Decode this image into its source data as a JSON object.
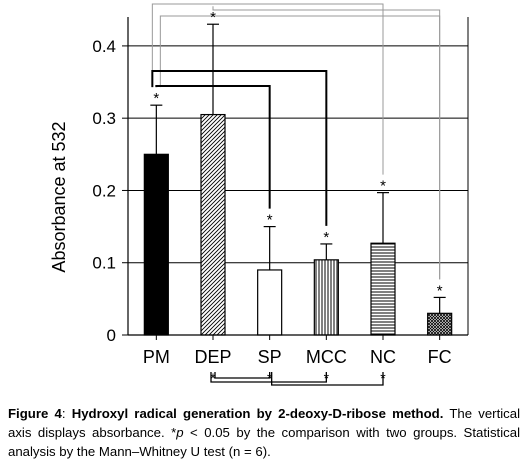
{
  "chart_data": {
    "type": "bar",
    "title": "",
    "xlabel": "",
    "ylabel": "Absorbance at 532",
    "ylim": [
      0,
      0.44
    ],
    "yticks": [
      0,
      0.1,
      0.2,
      0.3,
      0.4
    ],
    "ytick_labels": [
      "0",
      "0.1",
      "0.2",
      "0.3",
      "0.4"
    ],
    "grid": true,
    "categories": [
      "PM",
      "DEP",
      "SP",
      "MCC",
      "NC",
      "FC"
    ],
    "values": [
      0.25,
      0.305,
      0.09,
      0.104,
      0.127,
      0.03
    ],
    "errors": [
      0.068,
      0.125,
      0.06,
      0.022,
      0.07,
      0.022
    ],
    "patterns": [
      "solid",
      "diagonal",
      "open",
      "vertical",
      "horizontal",
      "crosshatch"
    ],
    "significance_markers": [
      "*",
      "*",
      "*",
      "*",
      "*",
      "*"
    ],
    "brackets": {
      "top": [
        {
          "from": "PM",
          "to": "NC"
        },
        {
          "from": "DEP",
          "to": "FC"
        },
        {
          "from": "PM",
          "to": "FC"
        },
        {
          "from": "PM",
          "to": "MCC"
        },
        {
          "from": "PM",
          "to": "SP"
        }
      ],
      "bottom": [
        {
          "from": "DEP",
          "to": "SP"
        },
        {
          "from": "DEP",
          "to": "MCC"
        },
        {
          "from": "SP",
          "to": "NC"
        }
      ],
      "bottom_marker": "*"
    }
  },
  "caption": {
    "label": "Figure 4",
    "title": "Hydroxyl radical generation by 2-deoxy-D-ribose method.",
    "text_before_p": " The vertical axis displays absorbance. *",
    "p_symbol": "p",
    "text_after_p": " < 0.05 by the comparison with two groups. Statistical analysis by the Mann–Whitney U test (n = 6)."
  },
  "colors": {
    "ink": "#000000",
    "grid": "#000000",
    "bracket_gray": "#999999"
  }
}
